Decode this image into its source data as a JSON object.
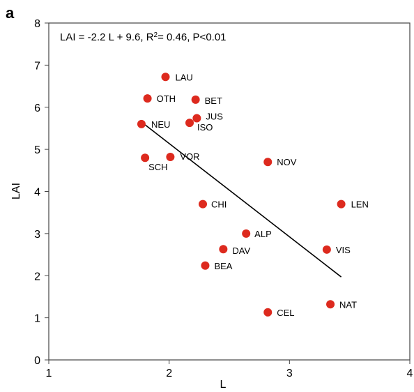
{
  "panel_label": "a",
  "chart_data": {
    "type": "scatter",
    "annotation": {
      "text_before": "LAI = -2.2 L + 9.6, R",
      "superscript": "2",
      "text_after": "= 0.46, P<0.01"
    },
    "xlabel": "L",
    "ylabel": "LAI",
    "xlim": [
      1,
      4
    ],
    "ylim": [
      0,
      8
    ],
    "x_ticks": [
      "1",
      "2",
      "3",
      "4"
    ],
    "y_ticks": [
      "0",
      "1",
      "2",
      "3",
      "4",
      "5",
      "6",
      "7",
      "8"
    ],
    "grid": false,
    "marker_color": "#dd2a1e",
    "line_color": "#000000",
    "regression_line": {
      "x": [
        1.77,
        3.43
      ],
      "y": [
        5.65,
        1.97
      ]
    },
    "points": [
      {
        "label": "LAU",
        "x": 1.97,
        "y": 6.72
      },
      {
        "label": "OTH",
        "x": 1.82,
        "y": 6.21
      },
      {
        "label": "BET",
        "x": 2.22,
        "y": 6.18
      },
      {
        "label": "JUS",
        "x": 2.23,
        "y": 5.74
      },
      {
        "label": "ISO",
        "x": 2.17,
        "y": 5.63
      },
      {
        "label": "NEU",
        "x": 1.77,
        "y": 5.6
      },
      {
        "label": "SCH",
        "x": 1.8,
        "y": 4.8
      },
      {
        "label": "VOR",
        "x": 2.01,
        "y": 4.82
      },
      {
        "label": "NOV",
        "x": 2.82,
        "y": 4.7
      },
      {
        "label": "CHI",
        "x": 2.28,
        "y": 3.7
      },
      {
        "label": "LEN",
        "x": 3.43,
        "y": 3.7
      },
      {
        "label": "ALP",
        "x": 2.64,
        "y": 3.0
      },
      {
        "label": "DAV",
        "x": 2.45,
        "y": 2.63
      },
      {
        "label": "VIS",
        "x": 3.31,
        "y": 2.62
      },
      {
        "label": "BEA",
        "x": 2.3,
        "y": 2.24
      },
      {
        "label": "NAT",
        "x": 3.34,
        "y": 1.32
      },
      {
        "label": "CEL",
        "x": 2.82,
        "y": 1.13
      }
    ]
  }
}
